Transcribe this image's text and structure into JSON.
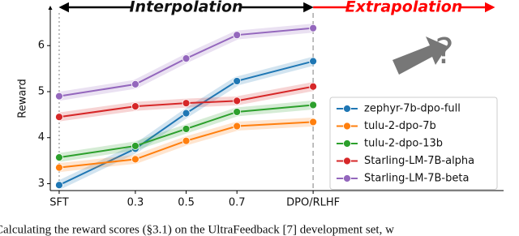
{
  "chart_data": {
    "type": "line",
    "ylabel": "Reward",
    "annotations": [
      "Interpolation",
      "Extrapolation",
      "?"
    ],
    "caption": "Calculating the reward scores (§3.1) on the UltraFeedback [7] development set, w",
    "x": [
      0,
      0.3,
      0.5,
      0.7,
      1
    ],
    "xlim": [
      -0.035,
      1.75
    ],
    "xticks": [
      {
        "value": 0,
        "label": "SFT"
      },
      0.3,
      0.5,
      0.7,
      {
        "value": 1,
        "label": "DPO/RLHF"
      }
    ],
    "ylim": [
      2.85,
      6.85
    ],
    "yticks": [
      3,
      4,
      5,
      6
    ],
    "legend": "lower right",
    "series": [
      {
        "name": "zephyr-7b-dpo-full",
        "color": "#1f77b4",
        "values": [
          2.97,
          3.76,
          4.53,
          5.23,
          5.66
        ]
      },
      {
        "name": "tulu-2-dpo-7b",
        "color": "#ff7f0e",
        "values": [
          3.35,
          3.53,
          3.93,
          4.25,
          4.34
        ]
      },
      {
        "name": "tulu-2-dpo-13b",
        "color": "#2ca02c",
        "values": [
          3.57,
          3.82,
          4.19,
          4.56,
          4.71
        ]
      },
      {
        "name": "Starling-LM-7B-alpha",
        "color": "#d62728",
        "values": [
          4.45,
          4.68,
          4.75,
          4.8,
          5.11
        ]
      },
      {
        "name": "Starling-LM-7B-beta",
        "color": "#9467bd",
        "values": [
          4.9,
          5.16,
          5.72,
          6.23,
          6.38
        ]
      }
    ]
  }
}
